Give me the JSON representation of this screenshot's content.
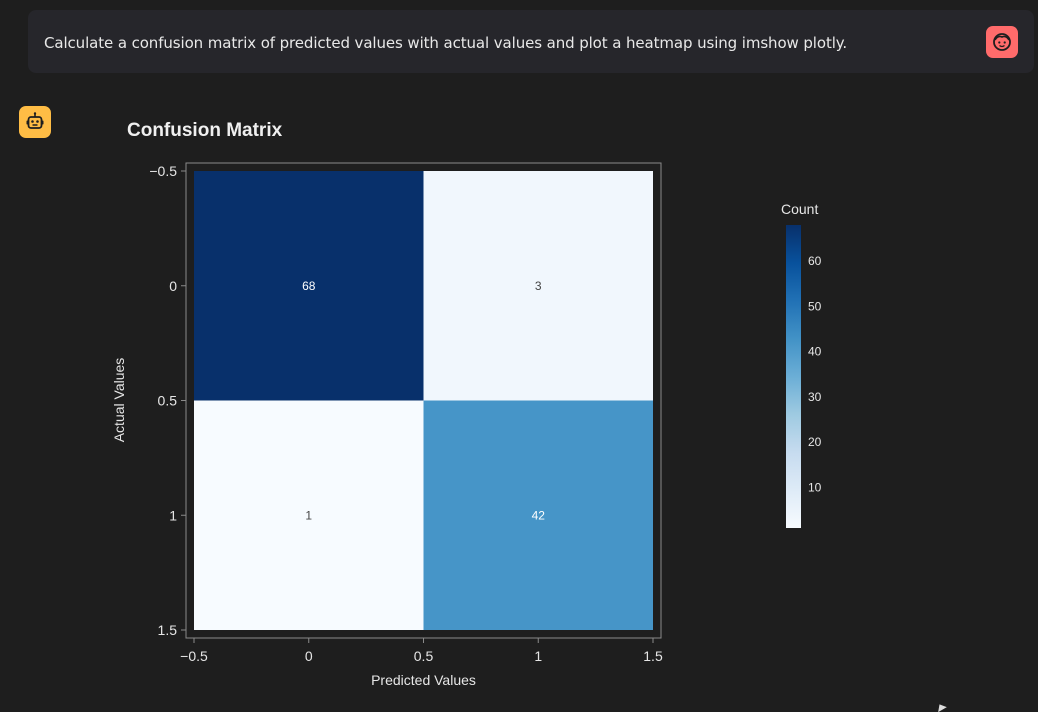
{
  "chat": {
    "user_message": "Calculate a confusion matrix of predicted values with actual values and plot a heatmap using imshow plotly.",
    "user_avatar_icon": "user-face-icon",
    "bot_avatar_icon": "robot-icon",
    "user_avatar_color": "#ff6b6b",
    "bot_avatar_color": "#ffbd45"
  },
  "chart_data": {
    "type": "heatmap",
    "title": "Confusion Matrix",
    "xlabel": "Predicted Values",
    "ylabel": "Actual Values",
    "x_categories": [
      0,
      1
    ],
    "y_categories": [
      0,
      1
    ],
    "z": [
      [
        68,
        3
      ],
      [
        1,
        42
      ]
    ],
    "text": [
      [
        "68",
        "3"
      ],
      [
        "1",
        "42"
      ]
    ],
    "x_range": [
      -0.5,
      1.5
    ],
    "y_range": [
      -0.5,
      1.5
    ],
    "x_ticks": [
      -0.5,
      0,
      0.5,
      1,
      1.5
    ],
    "x_tick_labels": [
      "−0.5",
      "0",
      "0.5",
      "1",
      "1.5"
    ],
    "y_ticks": [
      -0.5,
      0,
      0.5,
      1,
      1.5
    ],
    "y_tick_labels": [
      "−0.5",
      "0",
      "0.5",
      "1",
      "1.5"
    ],
    "colorscale": "Blues",
    "colorbar": {
      "title": "Count",
      "range": [
        1,
        68
      ],
      "ticks": [
        10,
        20,
        30,
        40,
        50,
        60
      ],
      "tick_labels": [
        "10",
        "20",
        "30",
        "40",
        "50",
        "60"
      ]
    }
  }
}
